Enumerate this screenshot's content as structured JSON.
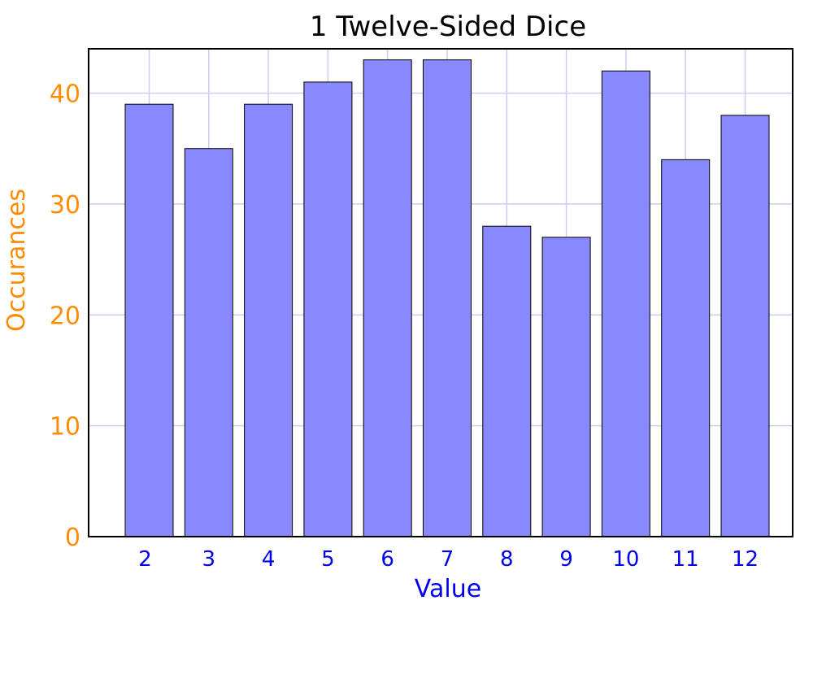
{
  "chart_data": {
    "type": "bar",
    "title": "1 Twelve-Sided Dice",
    "xlabel": "Value",
    "ylabel": "Occurances",
    "categories": [
      "2",
      "3",
      "4",
      "5",
      "6",
      "7",
      "8",
      "9",
      "10",
      "11",
      "12"
    ],
    "values": [
      39,
      35,
      39,
      41,
      43,
      43,
      28,
      27,
      42,
      34,
      38
    ],
    "ylim": [
      0,
      44
    ],
    "yticks": [
      0,
      10,
      20,
      30,
      40
    ],
    "grid": true,
    "legend": "none",
    "colors": {
      "bar_fill": "#8888ff",
      "bar_stroke": "#000000",
      "grid": "#ccccf4",
      "y_axis_text": "#ff8c00",
      "x_axis_text": "#0000ee",
      "title_text": "#000000"
    }
  }
}
